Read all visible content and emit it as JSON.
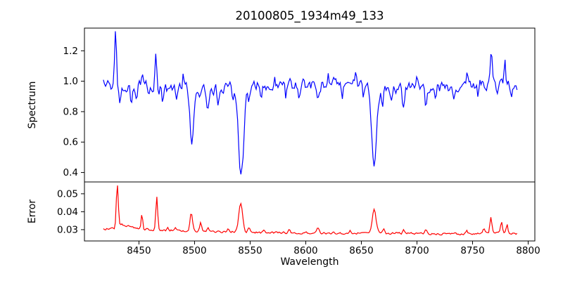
{
  "figure": {
    "title": "20100805_1934m49_133",
    "background_color": "#ffffff",
    "text_color": "#000000",
    "spine_color": "#000000",
    "grid": "off",
    "legend": "none"
  },
  "chart_data": [
    {
      "type": "line",
      "panel": "spectrum",
      "series_name": "spectrum",
      "line_color": "#0000ff",
      "ylabel": "Spectrum",
      "xlabel": "",
      "xlim": [
        8401,
        8806
      ],
      "ylim": [
        0.338,
        1.349
      ],
      "yticks": [
        0.4,
        0.6,
        0.8,
        1.0,
        1.2
      ],
      "ytick_labels": [
        "0.4",
        "0.6",
        "0.8",
        "1.0",
        "1.2"
      ],
      "show_xticks": false,
      "xticks": [],
      "xtick_labels": [],
      "x_start": 8418,
      "x_end": 8790,
      "n_points": 380,
      "noise_amp": 0.03,
      "seed": 20100805,
      "baseline_points": [
        [
          8418,
          0.985
        ],
        [
          8425,
          0.96
        ],
        [
          8440,
          0.965
        ],
        [
          8455,
          0.975
        ],
        [
          8470,
          0.945
        ],
        [
          8490,
          0.96
        ],
        [
          8510,
          0.945
        ],
        [
          8530,
          0.96
        ],
        [
          8550,
          0.965
        ],
        [
          8575,
          0.972
        ],
        [
          8600,
          0.975
        ],
        [
          8625,
          0.985
        ],
        [
          8650,
          0.98
        ],
        [
          8672,
          0.945
        ],
        [
          8690,
          0.955
        ],
        [
          8710,
          0.96
        ],
        [
          8730,
          0.965
        ],
        [
          8750,
          0.975
        ],
        [
          8768,
          0.98
        ],
        [
          8790,
          0.975
        ]
      ],
      "features": [
        [
          8429,
          0.35,
          0.9
        ],
        [
          8433,
          -0.13,
          0.8
        ],
        [
          8443,
          -0.09,
          0.8
        ],
        [
          8448,
          -0.08,
          0.7
        ],
        [
          8453,
          0.1,
          0.7
        ],
        [
          8459,
          -0.07,
          0.7
        ],
        [
          8465,
          0.23,
          0.8
        ],
        [
          8471,
          -0.07,
          0.7
        ],
        [
          8484,
          -0.11,
          0.9
        ],
        [
          8490,
          0.08,
          0.7
        ],
        [
          8497.5,
          -0.36,
          1.5
        ],
        [
          8505,
          -0.06,
          0.8
        ],
        [
          8512,
          -0.12,
          1.0
        ],
        [
          8521,
          -0.09,
          0.8
        ],
        [
          8535,
          -0.06,
          1.0
        ],
        [
          8542,
          -0.58,
          2.4
        ],
        [
          8549,
          -0.07,
          1.0
        ],
        [
          8560,
          -0.06,
          0.8
        ],
        [
          8572,
          0.07,
          0.7
        ],
        [
          8582,
          -0.07,
          0.8
        ],
        [
          8594,
          -0.08,
          0.8
        ],
        [
          8611,
          -0.13,
          1.1
        ],
        [
          8620,
          0.07,
          0.7
        ],
        [
          8633,
          -0.06,
          0.8
        ],
        [
          8645,
          0.08,
          0.7
        ],
        [
          8652,
          -0.07,
          0.7
        ],
        [
          8661.5,
          -0.52,
          2.2
        ],
        [
          8669,
          -0.09,
          0.9
        ],
        [
          8677,
          -0.06,
          0.8
        ],
        [
          8688,
          -0.14,
          1.1
        ],
        [
          8700,
          0.06,
          0.7
        ],
        [
          8708,
          -0.12,
          0.9
        ],
        [
          8717,
          -0.07,
          0.8
        ],
        [
          8733,
          -0.08,
          0.8
        ],
        [
          8745,
          0.07,
          0.7
        ],
        [
          8755,
          -0.06,
          0.7
        ],
        [
          8767,
          0.23,
          0.8
        ],
        [
          8772,
          -0.08,
          0.7
        ],
        [
          8779,
          0.15,
          0.7
        ],
        [
          8785,
          -0.07,
          0.7
        ]
      ],
      "key_points_summary": "Noisy continuum near 1.0 (0.93-1.05); emission-like spikes at 8429 (1.31), 8465 (1.20), 8767 (1.21), 8779 (1.13); absorption dips at 8497 (0.59), 8542 (0.38), 8661 (0.44), smaller dips at 8484, 8512, 8611, 8688, 8708 (~0.83-0.87)"
    },
    {
      "type": "line",
      "panel": "error",
      "series_name": "error",
      "line_color": "#ff0000",
      "ylabel": "Error",
      "xlabel": "Wavelength",
      "xlim": [
        8401,
        8806
      ],
      "ylim": [
        0.0237,
        0.0566
      ],
      "yticks": [
        0.03,
        0.04,
        0.05
      ],
      "ytick_labels": [
        "0.03",
        "0.04",
        "0.05"
      ],
      "show_xticks": true,
      "xticks": [
        8450,
        8500,
        8550,
        8600,
        8650,
        8700,
        8750,
        8800
      ],
      "xtick_labels": [
        "8450",
        "8500",
        "8550",
        "8600",
        "8650",
        "8700",
        "8750",
        "8800"
      ],
      "x_start": 8418,
      "x_end": 8790,
      "n_points": 380,
      "noise_amp": 0.0005,
      "seed": 1934049,
      "baseline_points": [
        [
          8418,
          0.0301
        ],
        [
          8424,
          0.031
        ],
        [
          8429,
          0.0306
        ],
        [
          8434,
          0.033
        ],
        [
          8442,
          0.0315
        ],
        [
          8452,
          0.0304
        ],
        [
          8462,
          0.03
        ],
        [
          8475,
          0.0296
        ],
        [
          8490,
          0.0293
        ],
        [
          8505,
          0.0291
        ],
        [
          8520,
          0.0288
        ],
        [
          8540,
          0.0287
        ],
        [
          8560,
          0.0284
        ],
        [
          8580,
          0.0283
        ],
        [
          8600,
          0.0281
        ],
        [
          8625,
          0.028
        ],
        [
          8650,
          0.028
        ],
        [
          8675,
          0.028
        ],
        [
          8700,
          0.0279
        ],
        [
          8720,
          0.0277
        ],
        [
          8740,
          0.0276
        ],
        [
          8758,
          0.028
        ],
        [
          8772,
          0.0284
        ],
        [
          8782,
          0.0282
        ],
        [
          8790,
          0.0277
        ]
      ],
      "features": [
        [
          8430.5,
          0.0235,
          0.9
        ],
        [
          8452.7,
          0.0085,
          0.7
        ],
        [
          8466,
          0.018,
          0.8
        ],
        [
          8476,
          0.002,
          0.7
        ],
        [
          8483,
          0.0015,
          0.7
        ],
        [
          8497,
          0.01,
          1.1
        ],
        [
          8505.5,
          0.0048,
          0.8
        ],
        [
          8512,
          0.002,
          0.8
        ],
        [
          8530,
          0.0012,
          0.8
        ],
        [
          8541.5,
          0.0158,
          1.7
        ],
        [
          8549,
          0.0028,
          1.0
        ],
        [
          8562,
          0.0015,
          0.8
        ],
        [
          8585,
          0.0015,
          0.8
        ],
        [
          8611,
          0.0032,
          1.0
        ],
        [
          8640,
          0.0015,
          0.8
        ],
        [
          8661.5,
          0.0138,
          1.7
        ],
        [
          8670,
          0.0025,
          0.9
        ],
        [
          8688,
          0.0022,
          0.9
        ],
        [
          8708,
          0.0018,
          0.8
        ],
        [
          8745,
          0.0015,
          0.7
        ],
        [
          8760,
          0.003,
          0.8
        ],
        [
          8766.5,
          0.0082,
          0.9
        ],
        [
          8776,
          0.0055,
          0.8
        ],
        [
          8781,
          0.0042,
          0.7
        ]
      ],
      "key_points_summary": "Error baseline ~0.030 declining to ~0.028; spikes at 8430 (0.054), 8453 (0.038), 8466 (0.048), 8497 (0.039), 8505 (0.034), 8542 (0.044), 8611 (0.031), 8661 (0.042), 8766 (0.037), 8776 (0.034)"
    }
  ]
}
